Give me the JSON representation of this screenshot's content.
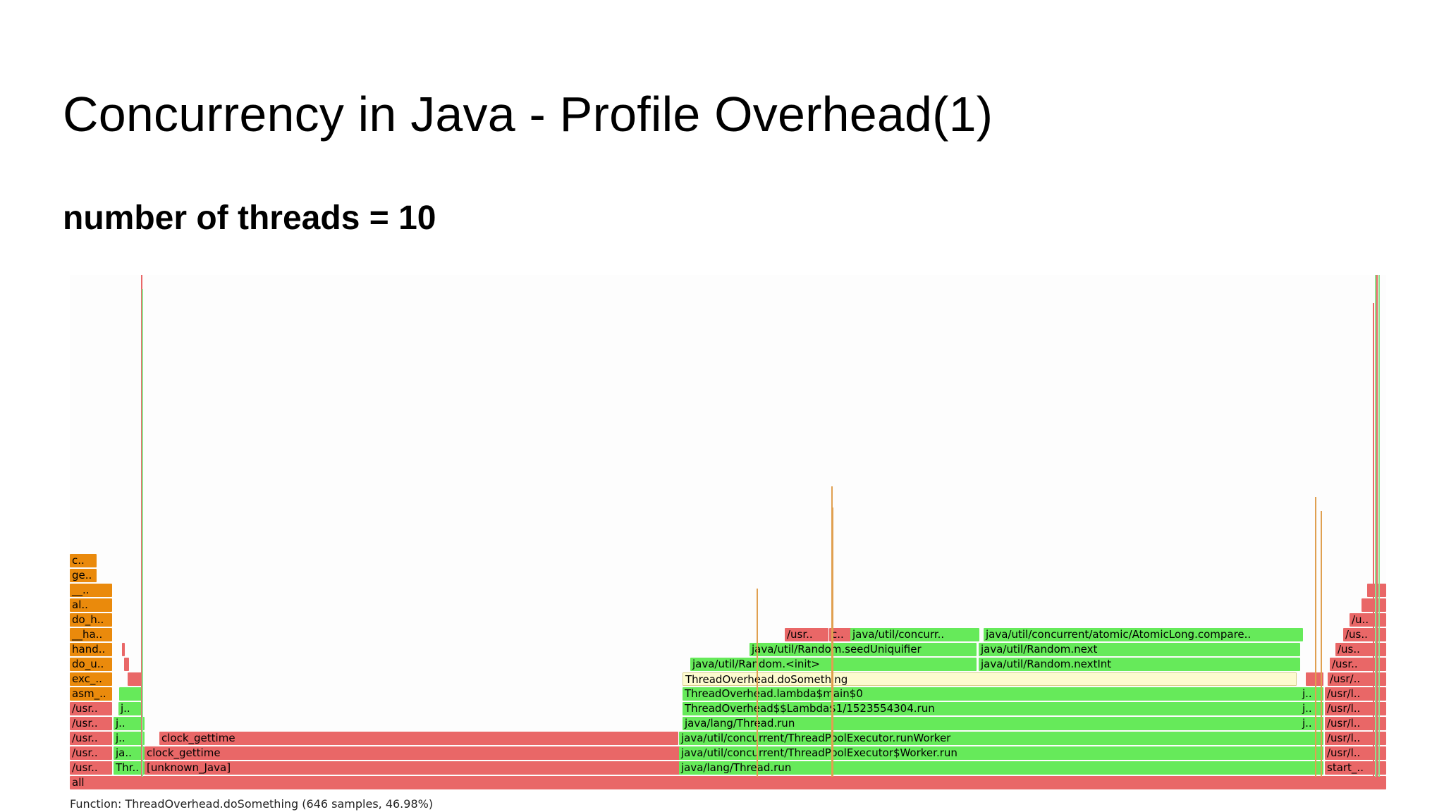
{
  "slide": {
    "title": "Concurrency in Java - Profile Overhead(1)",
    "subtitle": "number of threads = 10"
  },
  "flamegraph": {
    "status": "Function: ThreadOverhead.doSomething (646 samples, 46.98%)",
    "colors": {
      "java": "#66ea5a",
      "native": "#e96767",
      "kernel": "#ea8a0c",
      "highlight": "#fdfbcf",
      "spike_orange": "#e0a050",
      "spike_red": "#e96767",
      "spike_green": "#8ee08e"
    },
    "frames": [
      {
        "label": "all",
        "type": "native"
      },
      {
        "label": "/usr..",
        "type": "native"
      },
      {
        "label": "/usr..",
        "type": "native"
      },
      {
        "label": "/usr..",
        "type": "native"
      },
      {
        "label": "/usr..",
        "type": "native"
      },
      {
        "label": "/usr..",
        "type": "native"
      },
      {
        "label": "asm_..",
        "type": "kernel"
      },
      {
        "label": "exc_..",
        "type": "kernel"
      },
      {
        "label": "do_u..",
        "type": "kernel"
      },
      {
        "label": "hand..",
        "type": "kernel"
      },
      {
        "label": "__ha..",
        "type": "kernel"
      },
      {
        "label": "do_h..",
        "type": "kernel"
      },
      {
        "label": "al..",
        "type": "kernel"
      },
      {
        "label": "__..",
        "type": "kernel"
      },
      {
        "label": "ge..",
        "type": "kernel"
      },
      {
        "label": "c..",
        "type": "kernel"
      },
      {
        "label": "Thr..",
        "type": "java"
      },
      {
        "label": "ja..",
        "type": "java"
      },
      {
        "label": "j..",
        "type": "java"
      },
      {
        "label": "j..",
        "type": "java"
      },
      {
        "label": "j..",
        "type": "java"
      },
      {
        "label": "",
        "type": "java"
      },
      {
        "label": "",
        "type": "native"
      },
      {
        "label": "",
        "type": "native"
      },
      {
        "label": "",
        "type": "native"
      },
      {
        "label": "[unknown_Java]",
        "type": "native"
      },
      {
        "label": "clock_gettime",
        "type": "native"
      },
      {
        "label": "clock_gettime",
        "type": "native"
      },
      {
        "label": "java/lang/Thread.run",
        "type": "java"
      },
      {
        "label": "java/util/concurrent/ThreadPoolExecutor$Worker.run",
        "type": "java"
      },
      {
        "label": "java/util/concurrent/ThreadPoolExecutor.runWorker",
        "type": "java"
      },
      {
        "label": "java/lang/Thread.run",
        "type": "java"
      },
      {
        "label": "ThreadOverhead$$Lambda$1/1523554304.run",
        "type": "java"
      },
      {
        "label": "ThreadOverhead.lambda$main$0",
        "type": "java"
      },
      {
        "label": "ThreadOverhead.doSomething",
        "type": "highlight"
      },
      {
        "label": "java/util/Random.<init>",
        "type": "java"
      },
      {
        "label": "java/util/Random.seedUniquifier",
        "type": "java"
      },
      {
        "label": "/usr..",
        "type": "native"
      },
      {
        "label": "c..",
        "type": "native"
      },
      {
        "label": "java/util/concurr..",
        "type": "java"
      },
      {
        "label": "java/util/Random.nextInt",
        "type": "java"
      },
      {
        "label": "java/util/Random.next",
        "type": "java"
      },
      {
        "label": "java/util/concurrent/atomic/AtomicLong.compare..",
        "type": "java"
      },
      {
        "label": "j..",
        "type": "java"
      },
      {
        "label": "j..",
        "type": "java"
      },
      {
        "label": "j..",
        "type": "java"
      },
      {
        "label": "",
        "type": "native"
      },
      {
        "label": "start_..",
        "type": "native"
      },
      {
        "label": "/usr/l..",
        "type": "native"
      },
      {
        "label": "/usr/l..",
        "type": "native"
      },
      {
        "label": "/usr/l..",
        "type": "native"
      },
      {
        "label": "/usr/l..",
        "type": "native"
      },
      {
        "label": "/usr/l..",
        "type": "native"
      },
      {
        "label": "/usr/..",
        "type": "native"
      },
      {
        "label": "/usr..",
        "type": "native"
      },
      {
        "label": "/us..",
        "type": "native"
      },
      {
        "label": "/us..",
        "type": "native"
      },
      {
        "label": "/u..",
        "type": "native"
      },
      {
        "label": "",
        "type": "native"
      },
      {
        "label": "",
        "type": "native"
      }
    ]
  }
}
